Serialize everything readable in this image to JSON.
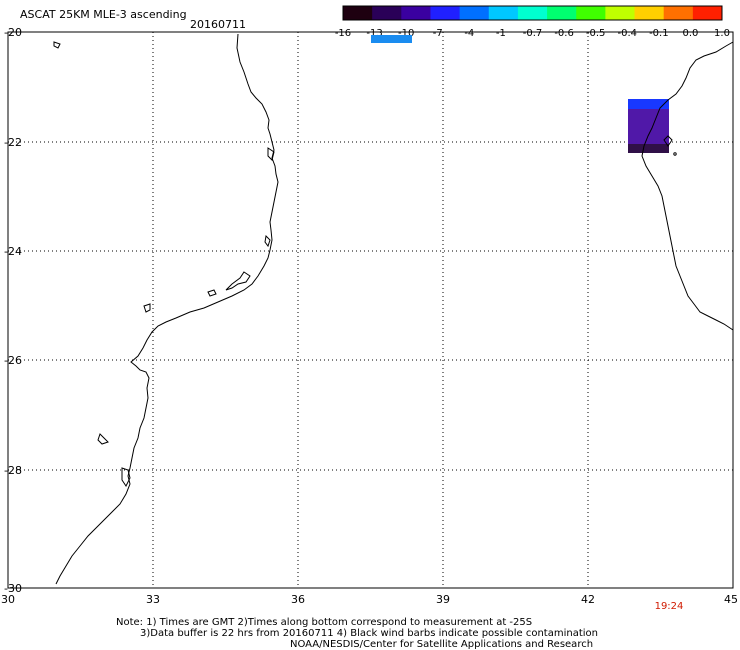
{
  "header": {
    "title": "ASCAT 25KM MLE-3 ascending",
    "date": "20160711"
  },
  "colorbar": {
    "labels": [
      "-16",
      "-13",
      "-10",
      "-7",
      "-4",
      "-1",
      "-0.7",
      "-0.6",
      "-0.5",
      "-0.4",
      "-0.1",
      "0.0",
      "1.0"
    ],
    "colors": [
      "#1e0010",
      "#2a0058",
      "#3a00a0",
      "#2020ff",
      "#0070ff",
      "#00c8ff",
      "#00ffd0",
      "#00ff70",
      "#40ff00",
      "#c0ff00",
      "#ffd000",
      "#ff7000",
      "#ff2000"
    ]
  },
  "map": {
    "lat_labels": [
      "-20",
      "-22",
      "-24",
      "-26",
      "-28",
      "-30"
    ],
    "lon_labels": [
      "30",
      "33",
      "36",
      "39",
      "42",
      "45"
    ],
    "coastline_color": "#000000",
    "grid_color": "#000000",
    "swath_colors": [
      "#1838ff",
      "#5018a8",
      "#301048"
    ],
    "legend_marker_color": "#1a8cf0"
  },
  "timestamp": "19:24",
  "notes": [
    "Note: 1) Times are GMT 2)Times along bottom correspond to measurement at -25S",
    "3)Data buffer is 22 hrs from 20160711 4) Black wind barbs indicate possible contamination",
    "NOAA/NESDIS/Center for Satellite Applications and Research"
  ]
}
